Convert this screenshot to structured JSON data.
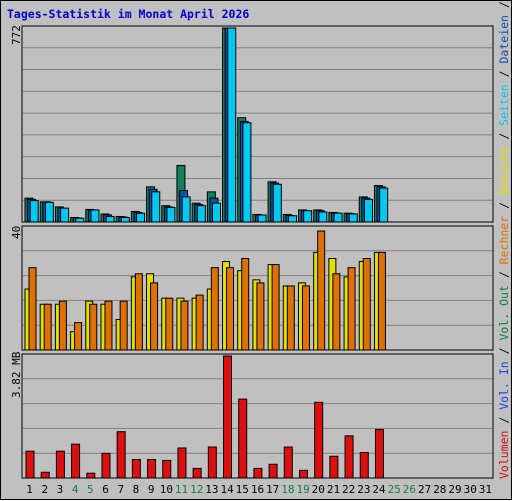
{
  "title": "Tages-Statistik im Monat April 2026",
  "side_legend": [
    {
      "text": "Volumen",
      "color": "#d01010"
    },
    {
      "text": " / ",
      "color": "#000000"
    },
    {
      "text": "Vol. In",
      "color": "#2040e0"
    },
    {
      "text": " / ",
      "color": "#000000"
    },
    {
      "text": "Vol. Out",
      "color": "#108040"
    },
    {
      "text": " / ",
      "color": "#000000"
    },
    {
      "text": "Rechner",
      "color": "#e07000"
    },
    {
      "text": " / ",
      "color": "#000000"
    },
    {
      "text": "Besuche",
      "color": "#e0e000"
    },
    {
      "text": " / ",
      "color": "#000000"
    },
    {
      "text": "Seiten",
      "color": "#00c8f0"
    },
    {
      "text": " / ",
      "color": "#000000"
    },
    {
      "text": "Dateien",
      "color": "#1050b0"
    },
    {
      "text": " / ",
      "color": "#000000"
    },
    {
      "text": "Anfragen",
      "color": "#108060"
    }
  ],
  "chart_data": [
    {
      "type": "bar",
      "panel": "top",
      "y_max_label": "772",
      "ylim": [
        0,
        772
      ],
      "categories": [
        "1",
        "2",
        "3",
        "4",
        "5",
        "6",
        "7",
        "8",
        "9",
        "10",
        "11",
        "12",
        "13",
        "14",
        "15",
        "16",
        "17",
        "18",
        "19",
        "20",
        "21",
        "22",
        "23",
        "24",
        "25",
        "26",
        "27",
        "28",
        "29",
        "30",
        "31"
      ],
      "series": [
        {
          "name": "Anfragen",
          "color": "#108060",
          "values": [
            95,
            80,
            60,
            18,
            50,
            32,
            22,
            42,
            140,
            65,
            225,
            75,
            120,
            772,
            415,
            30,
            160,
            30,
            48,
            48,
            38,
            35,
            100,
            145,
            0,
            0,
            0,
            0,
            0,
            0,
            0
          ]
        },
        {
          "name": "Dateien",
          "color": "#1050b0",
          "values": [
            90,
            80,
            55,
            16,
            48,
            28,
            20,
            38,
            130,
            60,
            125,
            70,
            95,
            772,
            400,
            28,
            155,
            26,
            45,
            45,
            36,
            33,
            95,
            140,
            0,
            0,
            0,
            0,
            0,
            0,
            0
          ]
        },
        {
          "name": "Seiten",
          "color": "#00c8f0",
          "values": [
            85,
            78,
            55,
            15,
            48,
            22,
            18,
            35,
            120,
            58,
            100,
            65,
            75,
            772,
            395,
            28,
            150,
            25,
            45,
            40,
            35,
            32,
            90,
            135,
            0,
            0,
            0,
            0,
            0,
            0,
            0
          ]
        }
      ]
    },
    {
      "type": "bar",
      "panel": "middle",
      "y_max_label": "40",
      "ylim": [
        0,
        40
      ],
      "categories": [
        "1",
        "2",
        "3",
        "4",
        "5",
        "6",
        "7",
        "8",
        "9",
        "10",
        "11",
        "12",
        "13",
        "14",
        "15",
        "16",
        "17",
        "18",
        "19",
        "20",
        "21",
        "22",
        "23",
        "24",
        "25",
        "26",
        "27",
        "28",
        "29",
        "30",
        "31"
      ],
      "series": [
        {
          "name": "Besuche",
          "color": "#e0e000",
          "values": [
            20,
            15,
            15,
            6,
            16,
            15,
            10,
            24,
            25,
            17,
            17,
            17,
            20,
            29,
            26,
            23,
            28,
            21,
            22,
            32,
            30,
            24,
            29,
            32,
            0,
            0,
            0,
            0,
            0,
            0,
            0
          ]
        },
        {
          "name": "Rechner",
          "color": "#e07000",
          "values": [
            27,
            15,
            16,
            9,
            15,
            16,
            16,
            25,
            22,
            17,
            16,
            18,
            27,
            27,
            30,
            22,
            28,
            21,
            21,
            39,
            25,
            27,
            30,
            32,
            0,
            0,
            0,
            0,
            0,
            0,
            0
          ]
        }
      ]
    },
    {
      "type": "bar",
      "panel": "bottom",
      "y_max_label": "3.82 MB",
      "ylim": [
        0,
        3.82
      ],
      "categories": [
        "1",
        "2",
        "3",
        "4",
        "5",
        "6",
        "7",
        "8",
        "9",
        "10",
        "11",
        "12",
        "13",
        "14",
        "15",
        "16",
        "17",
        "18",
        "19",
        "20",
        "21",
        "22",
        "23",
        "24",
        "25",
        "26",
        "27",
        "28",
        "29",
        "30",
        "31"
      ],
      "series": [
        {
          "name": "Volumen",
          "color": "#dd1010",
          "values": [
            0.84,
            0.18,
            0.84,
            1.06,
            0.15,
            0.77,
            1.45,
            0.58,
            0.58,
            0.55,
            0.94,
            0.3,
            0.97,
            3.82,
            2.47,
            0.3,
            0.43,
            0.97,
            0.24,
            2.37,
            0.68,
            1.32,
            0.8,
            1.52,
            0,
            0,
            0,
            0,
            0,
            0,
            0
          ]
        }
      ]
    }
  ],
  "x_labels": [
    {
      "t": "1",
      "c": "#000000"
    },
    {
      "t": "2",
      "c": "#000000"
    },
    {
      "t": "3",
      "c": "#000000"
    },
    {
      "t": "4",
      "c": "#1a7a3c"
    },
    {
      "t": "5",
      "c": "#1a7a3c"
    },
    {
      "t": "6",
      "c": "#000000"
    },
    {
      "t": "7",
      "c": "#000000"
    },
    {
      "t": "8",
      "c": "#000000"
    },
    {
      "t": "9",
      "c": "#000000"
    },
    {
      "t": "10",
      "c": "#000000"
    },
    {
      "t": "11",
      "c": "#1a7a3c"
    },
    {
      "t": "12",
      "c": "#1a7a3c"
    },
    {
      "t": "13",
      "c": "#000000"
    },
    {
      "t": "14",
      "c": "#000000"
    },
    {
      "t": "15",
      "c": "#000000"
    },
    {
      "t": "16",
      "c": "#000000"
    },
    {
      "t": "17",
      "c": "#000000"
    },
    {
      "t": "18",
      "c": "#1a7a3c"
    },
    {
      "t": "19",
      "c": "#1a7a3c"
    },
    {
      "t": "20",
      "c": "#000000"
    },
    {
      "t": "21",
      "c": "#000000"
    },
    {
      "t": "22",
      "c": "#000000"
    },
    {
      "t": "23",
      "c": "#000000"
    },
    {
      "t": "24",
      "c": "#000000"
    },
    {
      "t": "25",
      "c": "#1a7a3c"
    },
    {
      "t": "26",
      "c": "#1a7a3c"
    },
    {
      "t": "27",
      "c": "#000000"
    },
    {
      "t": "28",
      "c": "#000000"
    },
    {
      "t": "29",
      "c": "#000000"
    },
    {
      "t": "30",
      "c": "#000000"
    },
    {
      "t": "31",
      "c": "#000000"
    }
  ]
}
